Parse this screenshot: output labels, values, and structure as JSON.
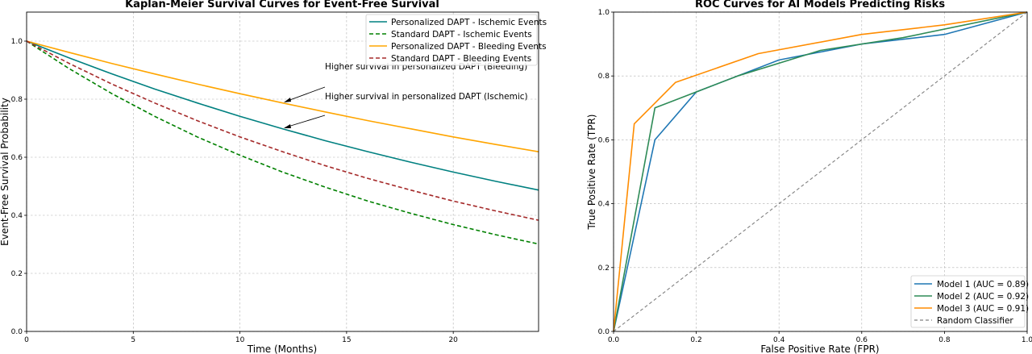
{
  "chart_data": [
    {
      "type": "line",
      "title": "Kaplan-Meier Survival Curves for Event-Free Survival",
      "xlabel": "Time (Months)",
      "ylabel": "Event-Free Survival Probability",
      "xlim": [
        0,
        24
      ],
      "ylim": [
        0,
        1.1
      ],
      "xticks": [
        0,
        5,
        10,
        15,
        20
      ],
      "yticks": [
        0.0,
        0.2,
        0.4,
        0.6,
        0.8,
        1.0
      ],
      "xtick_labels": [
        "0",
        "5",
        "10",
        "15",
        "20"
      ],
      "ytick_labels": [
        "0.0",
        "0.2",
        "0.4",
        "0.6",
        "0.8",
        "1.0"
      ],
      "grid": true,
      "legend_position": "top-right",
      "series": [
        {
          "name": "Personalized DAPT - Ischemic Events",
          "color": "#008080",
          "dash": "solid",
          "x": [
            0,
            2,
            4,
            6,
            8,
            10,
            12,
            14,
            16,
            18,
            20,
            22,
            24
          ],
          "y": [
            1.0,
            0.942,
            0.887,
            0.835,
            0.787,
            0.741,
            0.698,
            0.657,
            0.619,
            0.583,
            0.549,
            0.517,
            0.487
          ]
        },
        {
          "name": "Standard DAPT - Ischemic Events",
          "color": "#008000",
          "dash": "dashed",
          "x": [
            0,
            2,
            4,
            6,
            8,
            10,
            12,
            14,
            16,
            18,
            20,
            22,
            24
          ],
          "y": [
            1.0,
            0.905,
            0.819,
            0.741,
            0.67,
            0.607,
            0.549,
            0.497,
            0.449,
            0.407,
            0.368,
            0.333,
            0.301
          ]
        },
        {
          "name": "Personalized DAPT - Bleeding Events",
          "color": "#FFA500",
          "dash": "solid",
          "x": [
            0,
            2,
            4,
            6,
            8,
            10,
            12,
            14,
            16,
            18,
            20,
            22,
            24
          ],
          "y": [
            1.0,
            0.961,
            0.923,
            0.887,
            0.852,
            0.819,
            0.787,
            0.756,
            0.726,
            0.698,
            0.67,
            0.644,
            0.619
          ]
        },
        {
          "name": "Standard DAPT - Bleeding Events",
          "color": "#A52A2A",
          "dash": "dashed",
          "x": [
            0,
            2,
            4,
            6,
            8,
            10,
            12,
            14,
            16,
            18,
            20,
            22,
            24
          ],
          "y": [
            1.0,
            0.923,
            0.852,
            0.787,
            0.726,
            0.67,
            0.619,
            0.571,
            0.527,
            0.487,
            0.449,
            0.415,
            0.383
          ]
        }
      ],
      "annotations": [
        {
          "text": "Higher survival in personalized DAPT (Bleeding)",
          "point": [
            12,
            0.787
          ],
          "text_pos": [
            14.2,
            0.905
          ]
        },
        {
          "text": "Higher survival in personalized DAPT (Ischemic)",
          "point": [
            12,
            0.698
          ],
          "text_pos": [
            14.2,
            0.8
          ]
        }
      ]
    },
    {
      "type": "line",
      "title": "ROC Curves for AI Models Predicting Risks",
      "xlabel": "False Positive Rate (FPR)",
      "ylabel": "True Positive Rate (TPR)",
      "xlim": [
        0,
        1
      ],
      "ylim": [
        0,
        1
      ],
      "xticks": [
        0.0,
        0.2,
        0.4,
        0.6,
        0.8,
        1.0
      ],
      "yticks": [
        0.0,
        0.2,
        0.4,
        0.6,
        0.8,
        1.0
      ],
      "xtick_labels": [
        "0.0",
        "0.2",
        "0.4",
        "0.6",
        "0.8",
        "1.0"
      ],
      "ytick_labels": [
        "0.0",
        "0.2",
        "0.4",
        "0.6",
        "0.8",
        "1.0"
      ],
      "grid": true,
      "legend_position": "bottom-right",
      "series": [
        {
          "name": "Model 1 (AUC = 0.89)",
          "color": "#1f77b4",
          "dash": "solid",
          "x": [
            0.0,
            0.1,
            0.2,
            0.4,
            0.6,
            0.8,
            1.0
          ],
          "y": [
            0.0,
            0.6,
            0.75,
            0.85,
            0.9,
            0.93,
            1.0
          ]
        },
        {
          "name": "Model 2 (AUC = 0.92)",
          "color": "#2e8b57",
          "dash": "solid",
          "x": [
            0.0,
            0.1,
            0.2,
            0.3,
            0.5,
            0.7,
            1.0
          ],
          "y": [
            0.0,
            0.7,
            0.75,
            0.8,
            0.88,
            0.92,
            1.0
          ]
        },
        {
          "name": "Model 3 (AUC = 0.91)",
          "color": "#ff8c00",
          "dash": "solid",
          "x": [
            0.0,
            0.05,
            0.15,
            0.35,
            0.6,
            0.8,
            1.0
          ],
          "y": [
            0.0,
            0.65,
            0.78,
            0.87,
            0.93,
            0.96,
            1.0
          ]
        },
        {
          "name": "Random Classifier",
          "color": "#808080",
          "dash": "dashed",
          "x": [
            0.0,
            1.0
          ],
          "y": [
            0.0,
            1.0
          ]
        }
      ]
    }
  ]
}
